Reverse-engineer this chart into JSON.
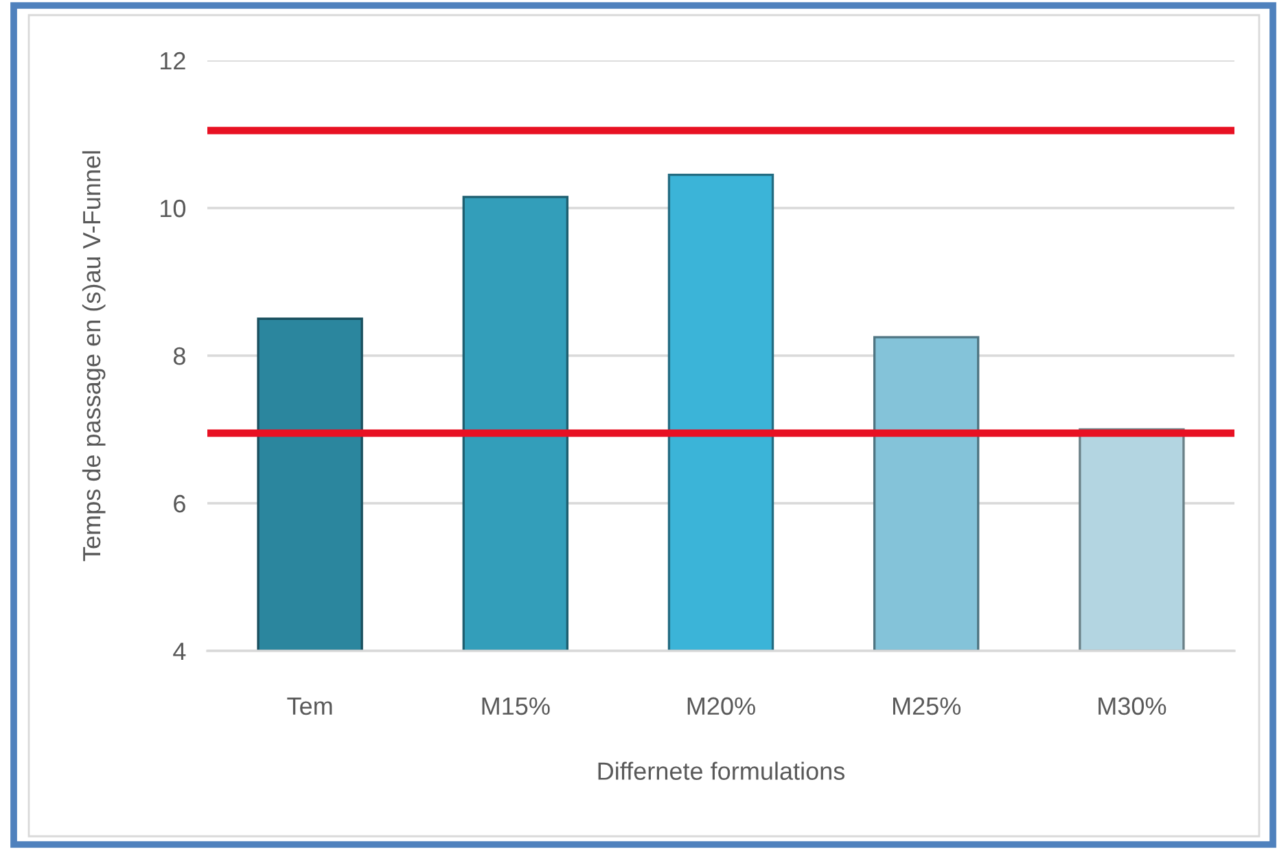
{
  "chart_data": {
    "type": "bar",
    "xlabel": "Differnete formulations",
    "ylabel": "Temps de passage en (s)au V-Funnel",
    "categories": [
      "Tem",
      "M15%",
      "M20%",
      "M25%",
      "M30%"
    ],
    "values": [
      8.5,
      10.15,
      10.45,
      8.25,
      7.0
    ],
    "colors": [
      "#2b869e",
      "#339eba",
      "#3bb4d8",
      "#84c3d9",
      "#b3d5e1"
    ],
    "ylim": [
      4,
      12
    ],
    "yticks": [
      4,
      6,
      8,
      10,
      12
    ],
    "grid": "y",
    "ref_lines": [
      {
        "axis": "y",
        "value": 11.05,
        "color": "#e81123"
      },
      {
        "axis": "y",
        "value": 6.95,
        "color": "#e81123"
      }
    ]
  }
}
